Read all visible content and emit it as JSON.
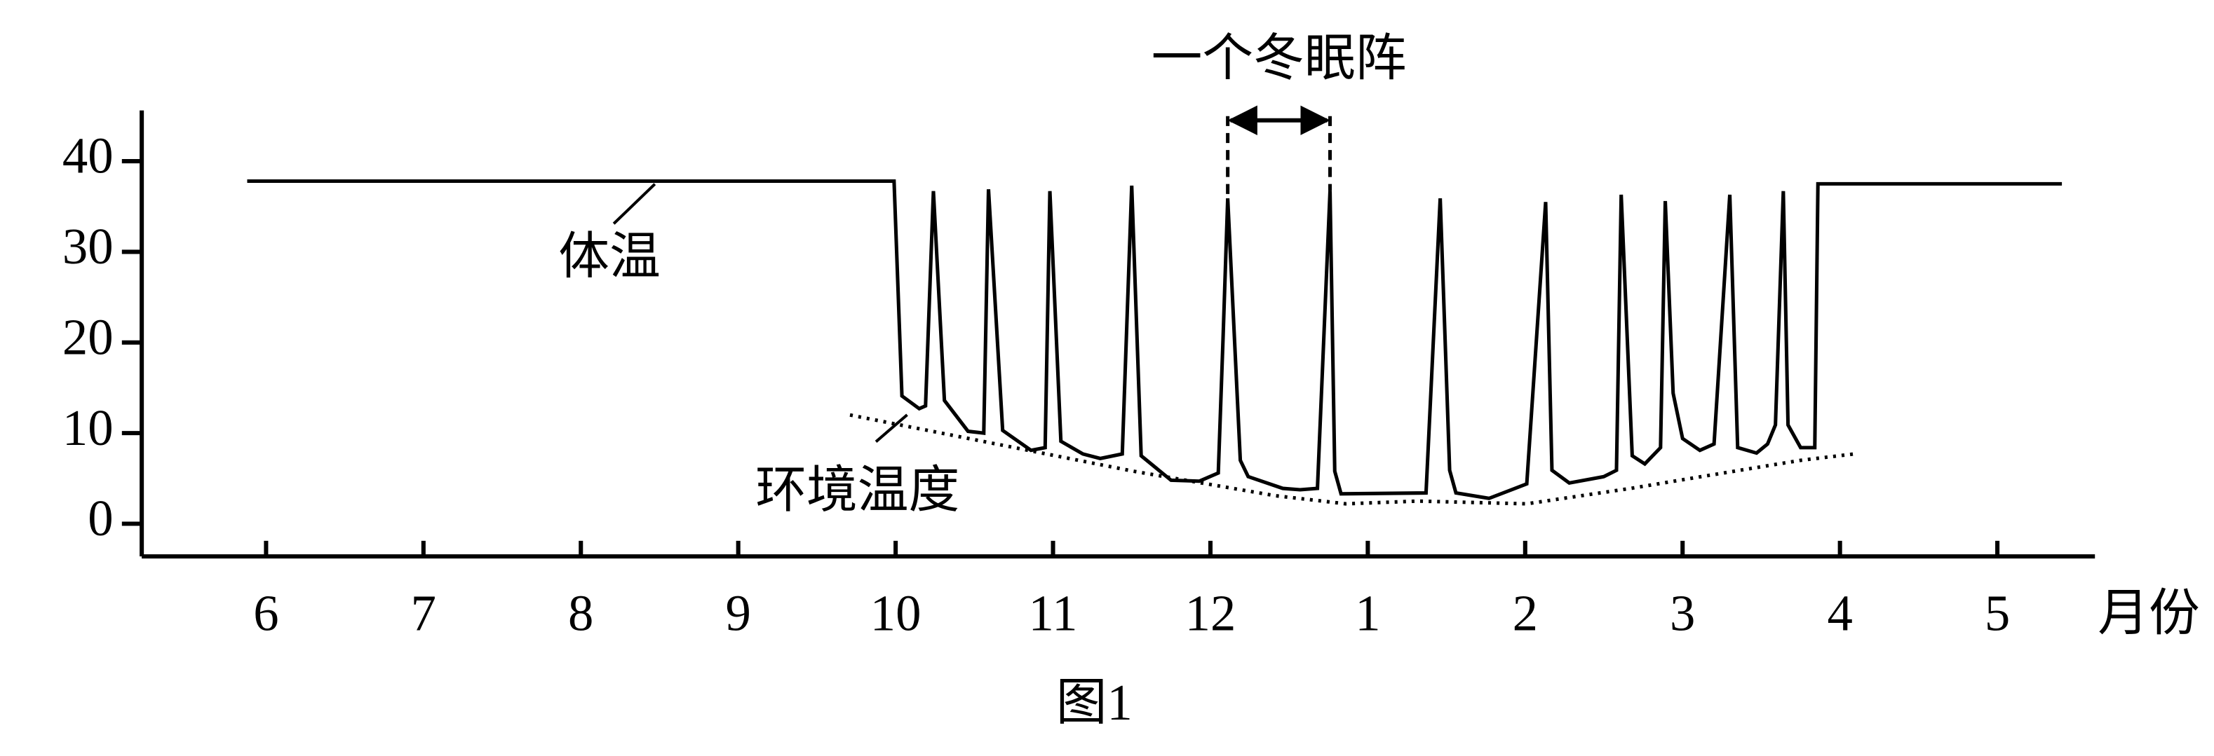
{
  "chart_data": {
    "type": "line",
    "title": "图1",
    "xlabel": "月份",
    "xlim": [
      5.21,
      17.62
    ],
    "ylim": [
      -3.6,
      45.6
    ],
    "xticks": [
      6,
      7,
      8,
      9,
      10,
      11,
      12,
      {
        "value": 13,
        "label": "1"
      },
      {
        "value": 14,
        "label": "2"
      },
      {
        "value": 15,
        "label": "3"
      },
      {
        "value": 16,
        "label": "4"
      },
      {
        "value": 17,
        "label": "5"
      }
    ],
    "yticks": [
      0,
      10,
      20,
      30,
      40
    ],
    "series": [
      {
        "name": "体温",
        "color": "#000000",
        "style": "solid",
        "x": [
          5.88,
          9.99,
          10.04,
          10.15,
          10.19,
          10.24,
          10.31,
          10.46,
          10.56,
          10.59,
          10.68,
          10.86,
          10.95,
          10.98,
          11.05,
          11.19,
          11.3,
          11.44,
          11.5,
          11.56,
          11.75,
          11.93,
          12.05,
          12.08,
          12.11,
          12.19,
          12.24,
          12.46,
          12.57,
          12.68,
          12.76,
          12.79,
          12.83,
          13.37,
          13.46,
          13.52,
          13.56,
          13.77,
          14.01,
          14.13,
          14.17,
          14.28,
          14.5,
          14.58,
          14.61,
          14.68,
          14.76,
          14.86,
          14.89,
          14.94,
          15.0,
          15.11,
          15.2,
          15.3,
          15.35,
          15.47,
          15.54,
          15.59,
          15.64,
          15.67,
          15.75,
          15.84,
          15.86,
          17.41
        ],
        "values": [
          37.8,
          37.8,
          14.1,
          12.7,
          13,
          36.7,
          13.6,
          10.2,
          10,
          36.9,
          10.3,
          8.1,
          8.4,
          36.7,
          9.1,
          7.7,
          7.2,
          7.7,
          37.3,
          7.5,
          4.8,
          4.7,
          5.6,
          20.3,
          35.9,
          7,
          5.2,
          3.9,
          3.75,
          3.9,
          36.7,
          5.8,
          3.3,
          3.4,
          35.9,
          5.9,
          3.4,
          2.8,
          4.4,
          35.5,
          5.9,
          4.5,
          5.2,
          5.9,
          36.3,
          7.5,
          6.6,
          8.4,
          35.6,
          14.4,
          9.4,
          8.1,
          8.8,
          36.3,
          8.4,
          7.8,
          8.8,
          10.9,
          36.7,
          10.9,
          8.4,
          8.4,
          37.5,
          37.5
        ]
      },
      {
        "name": "环境温度",
        "color": "#000000",
        "style": "dotted",
        "x": [
          9.71,
          10.61,
          11.51,
          12.41,
          12.86,
          13.32,
          14.01,
          14.67,
          15.12,
          15.75,
          16.09
        ],
        "values": [
          12,
          8.9,
          5.8,
          3.1,
          2.2,
          2.5,
          2.2,
          3.9,
          5.2,
          7,
          7.7
        ]
      }
    ],
    "annotation": {
      "text": "一个冬眠阵",
      "span": [
        12.11,
        12.76
      ]
    }
  }
}
